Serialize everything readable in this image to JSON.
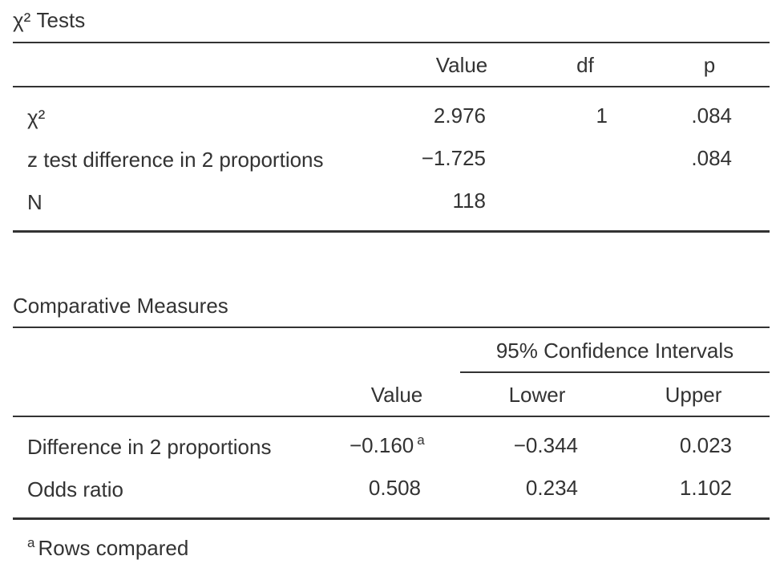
{
  "chi_tests": {
    "title": "χ² Tests",
    "headers": {
      "value": "Value",
      "df": "df",
      "p": "p"
    },
    "rows": [
      {
        "label": "χ²",
        "value": "2.976",
        "df": "1",
        "p": ".084"
      },
      {
        "label": "z test difference in 2 proportions",
        "value": "−1.725",
        "df": "",
        "p": ".084"
      },
      {
        "label": "N",
        "value": "118",
        "df": "",
        "p": ""
      }
    ]
  },
  "comparative": {
    "title": "Comparative Measures",
    "group_header": "95% Confidence Intervals",
    "headers": {
      "value": "Value",
      "lower": "Lower",
      "upper": "Upper"
    },
    "rows": [
      {
        "label": "Difference in 2 proportions",
        "value": "−0.160",
        "value_note": "a",
        "lower": "−0.344",
        "upper": "0.023"
      },
      {
        "label": "Odds ratio",
        "value": "0.508",
        "value_note": "",
        "lower": "0.234",
        "upper": "1.102"
      }
    ],
    "footnote": {
      "marker": "a",
      "text": "Rows compared"
    }
  }
}
